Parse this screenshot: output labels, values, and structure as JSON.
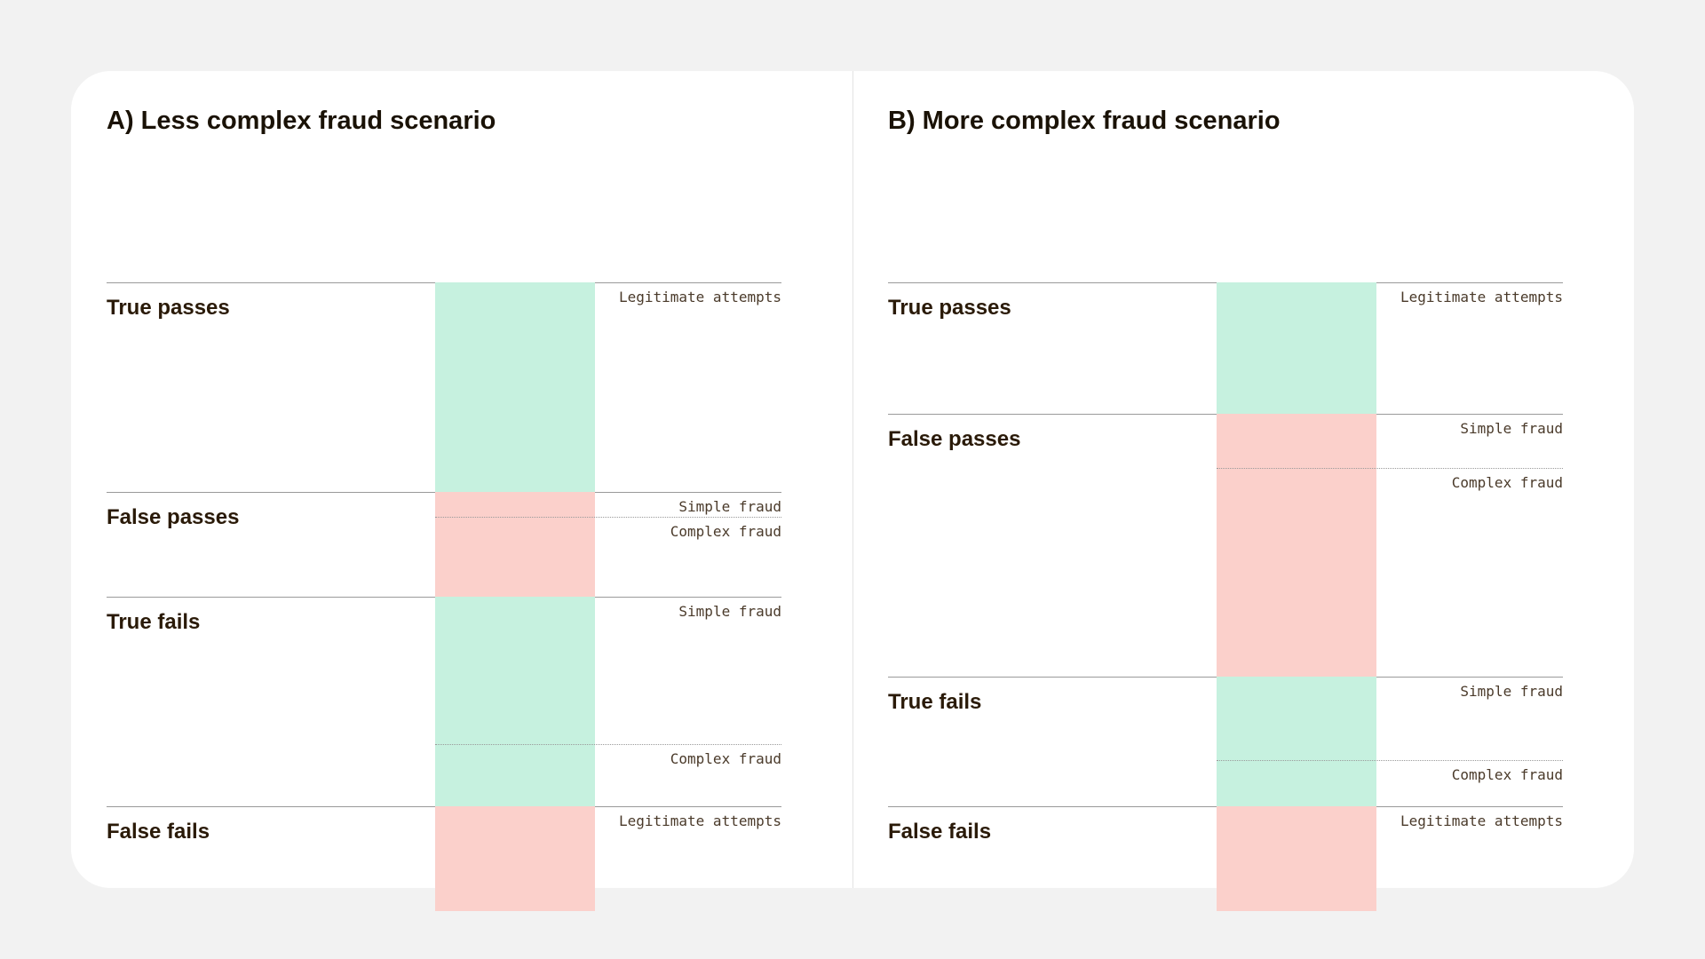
{
  "colors": {
    "background": "#f2f2f2",
    "card": "#ffffff",
    "correct": "#c6f1df",
    "incorrect": "#fbd0cb",
    "text": "#1a1206",
    "rule": "#9a9a9a"
  },
  "panels": [
    {
      "title": "A) Less complex fraud scenario",
      "segments": [
        {
          "label": "True passes",
          "outcome": "correct",
          "parts": [
            {
              "label": "Legitimate attempts"
            }
          ]
        },
        {
          "label": "False passes",
          "outcome": "incorrect",
          "parts": [
            {
              "label": "Simple fraud"
            },
            {
              "label": "Complex fraud"
            }
          ]
        },
        {
          "label": "True fails",
          "outcome": "correct",
          "parts": [
            {
              "label": "Simple fraud"
            },
            {
              "label": "Complex fraud"
            }
          ]
        },
        {
          "label": "False fails",
          "outcome": "incorrect",
          "parts": [
            {
              "label": "Legitimate attempts"
            }
          ]
        }
      ]
    },
    {
      "title": "B) More complex fraud scenario",
      "segments": [
        {
          "label": "True passes",
          "outcome": "correct",
          "parts": [
            {
              "label": "Legitimate attempts"
            }
          ]
        },
        {
          "label": "False passes",
          "outcome": "incorrect",
          "parts": [
            {
              "label": "Simple fraud"
            },
            {
              "label": "Complex fraud"
            }
          ]
        },
        {
          "label": "True fails",
          "outcome": "correct",
          "parts": [
            {
              "label": "Simple fraud"
            },
            {
              "label": "Complex fraud"
            }
          ]
        },
        {
          "label": "False fails",
          "outcome": "incorrect",
          "parts": [
            {
              "label": "Legitimate attempts"
            }
          ]
        }
      ]
    }
  ]
}
